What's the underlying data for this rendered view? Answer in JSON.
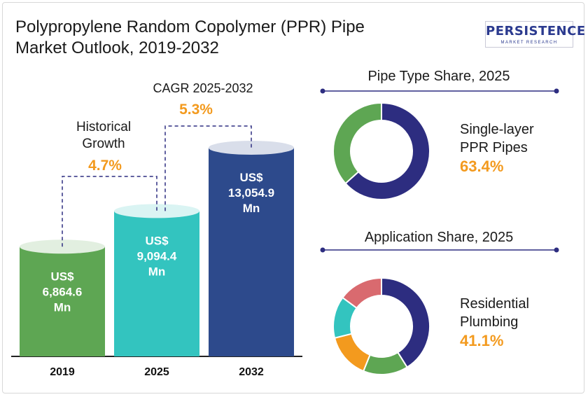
{
  "title_line1": "Polypropylene Random Copolymer (PPR) Pipe",
  "title_line2": "Market Outlook, 2019-2032",
  "logo": {
    "main": "PERSISTENCE",
    "sub": "MARKET RESEARCH"
  },
  "colors": {
    "bar_2019": "#5ea653",
    "bar_2025": "#33c4bf",
    "bar_2032": "#2d4a8c",
    "accent": "#f39a1e",
    "navy": "#2d2d80"
  },
  "chart_data": [
    {
      "type": "bar",
      "categories": [
        "2019",
        "2025",
        "2032"
      ],
      "values": [
        6864.6,
        9094.4,
        13054.9
      ],
      "data_labels": [
        [
          "US$",
          "6,864.6",
          "Mn"
        ],
        [
          "US$",
          "9,094.4",
          "Mn"
        ],
        [
          "US$",
          "13,054.9",
          "Mn"
        ]
      ],
      "annotations": [
        {
          "label_lines": [
            "Historical",
            "Growth"
          ],
          "value": "4.7%"
        },
        {
          "label_lines": [
            "CAGR 2025-2032"
          ],
          "value": "5.3%"
        }
      ]
    },
    {
      "type": "pie",
      "title": "Pipe Type Share, 2025",
      "slices": [
        {
          "value": 63.4,
          "color": "#2d2d80"
        },
        {
          "value": 36.6,
          "color": "#5ea653"
        }
      ],
      "highlight": {
        "label_lines": [
          "Single-layer",
          "PPR Pipes"
        ],
        "value": "63.4%"
      }
    },
    {
      "type": "pie",
      "title": "Application Share, 2025",
      "slices": [
        {
          "value": 41.1,
          "color": "#2d2d80"
        },
        {
          "value": 15,
          "color": "#5ea653"
        },
        {
          "value": 15,
          "color": "#f39a1e"
        },
        {
          "value": 14,
          "color": "#33c4bf"
        },
        {
          "value": 14.9,
          "color": "#d96a6f"
        }
      ],
      "highlight": {
        "label_lines": [
          "Residential",
          "Plumbing"
        ],
        "value": "41.1%"
      }
    }
  ]
}
